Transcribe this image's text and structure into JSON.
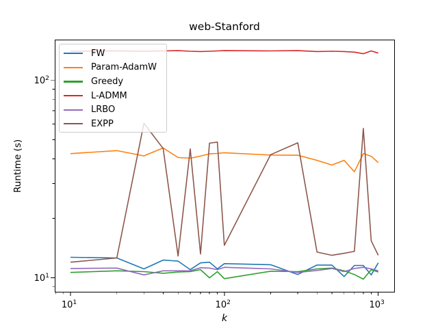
{
  "figure": {
    "background": "#ffffff",
    "spine_color": "#000000",
    "text_color": "#000000"
  },
  "chart_data": {
    "type": "line",
    "title": "web-Stanford",
    "xlabel": "k",
    "ylabel": "Runtime (s)",
    "xscale": "log",
    "yscale": "log",
    "xlim": [
      7.9,
      1270
    ],
    "ylim": [
      8.5,
      159
    ],
    "grid": false,
    "legend_position": "upper left",
    "x_major_ticks": [
      {
        "value": 10,
        "base": "10",
        "exp": "1"
      },
      {
        "value": 100,
        "base": "10",
        "exp": "2"
      },
      {
        "value": 1000,
        "base": "10",
        "exp": "3"
      }
    ],
    "y_major_ticks": [
      {
        "value": 10,
        "base": "10",
        "exp": "1"
      },
      {
        "value": 100,
        "base": "10",
        "exp": "2"
      }
    ],
    "x": [
      10,
      20,
      30,
      40,
      50,
      60,
      70,
      80,
      90,
      100,
      200,
      300,
      400,
      500,
      600,
      700,
      800,
      900,
      1000
    ],
    "series": [
      {
        "name": "FW",
        "color": "#1f77b4",
        "values": [
          12.7,
          12.6,
          11.1,
          12.3,
          12.15,
          11.0,
          11.9,
          12.0,
          11.1,
          11.8,
          11.65,
          10.4,
          11.6,
          11.6,
          10.15,
          11.55,
          11.55,
          10.35,
          11.9
        ]
      },
      {
        "name": "Param-AdamW",
        "color": "#ff7f0e",
        "values": [
          42.5,
          44.0,
          41.4,
          45.4,
          40.6,
          40.3,
          41.3,
          42.4,
          42.6,
          42.9,
          41.8,
          41.7,
          39.3,
          37.2,
          39.3,
          34.4,
          42.5,
          41.2,
          38.3
        ]
      },
      {
        "name": "Greedy",
        "color": "#2ca02c",
        "values": [
          10.65,
          10.85,
          10.75,
          10.55,
          10.7,
          10.75,
          11.0,
          10.0,
          10.75,
          9.9,
          10.8,
          10.75,
          11.1,
          11.2,
          10.85,
          10.4,
          9.85,
          11.0,
          10.7
        ]
      },
      {
        "name": "L-ADMM",
        "color": "#d62728",
        "values": [
          140,
          140.5,
          140,
          140.5,
          141,
          140,
          139.5,
          140,
          140.5,
          141,
          140.5,
          141,
          139.5,
          140,
          139.5,
          138.5,
          136,
          140.5,
          137
        ]
      },
      {
        "name": "LRBO",
        "color": "#9467bd",
        "values": [
          11.15,
          11.2,
          10.35,
          10.85,
          10.85,
          10.85,
          11.25,
          11.2,
          11.0,
          11.3,
          11.1,
          10.65,
          10.9,
          11.15,
          10.75,
          11.15,
          11.3,
          11.1,
          10.85
        ]
      },
      {
        "name": "EXPP",
        "color": "#8c564b",
        "values": [
          12.0,
          12.6,
          60.5,
          45.1,
          12.9,
          44.9,
          13.2,
          48.0,
          48.6,
          14.6,
          42.0,
          48.2,
          13.5,
          13.0,
          13.3,
          13.6,
          57.0,
          15.4,
          13.0
        ]
      }
    ]
  }
}
